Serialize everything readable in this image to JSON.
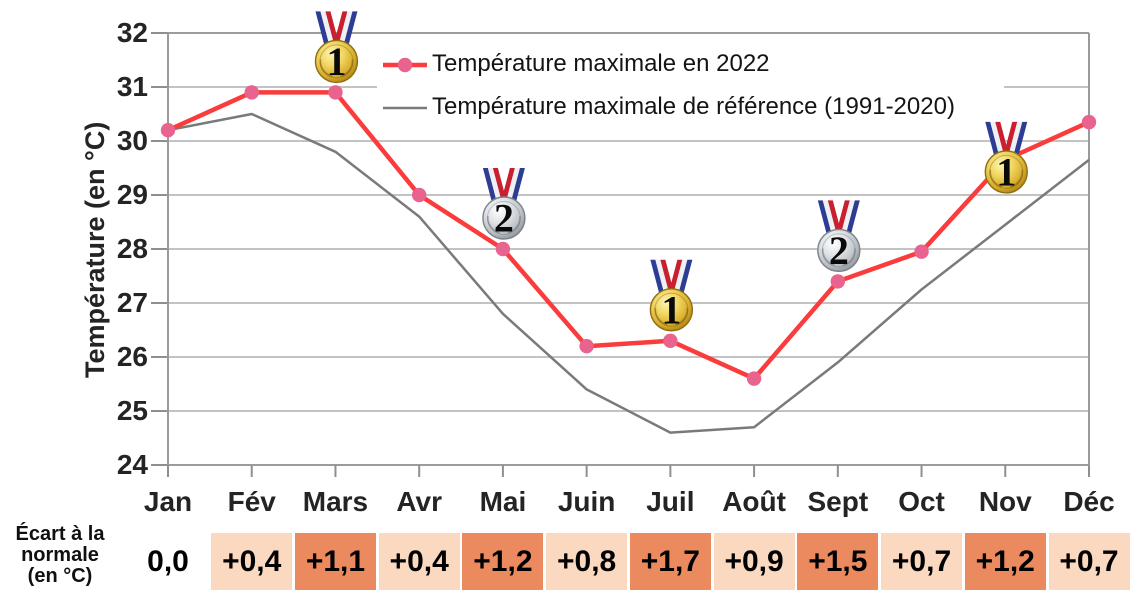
{
  "chart_data": {
    "type": "line",
    "x_categories": [
      "Jan",
      "Fév",
      "Mars",
      "Avr",
      "Mai",
      "Juin",
      "Juil",
      "Août",
      "Sept",
      "Oct",
      "Nov",
      "Déc"
    ],
    "series": [
      {
        "name": "Température maximale en 2022",
        "color": "#fb3c3c",
        "marker": "circle",
        "marker_color": "#e8638e",
        "values": [
          30.2,
          30.9,
          30.9,
          29.0,
          28.0,
          26.2,
          26.3,
          25.6,
          27.4,
          27.95,
          29.65,
          30.35
        ]
      },
      {
        "name": "Température maximale de référence (1991-2020)",
        "color": "#7a7a7a",
        "marker": "none",
        "values": [
          30.2,
          30.5,
          29.8,
          28.6,
          26.8,
          25.4,
          24.6,
          24.7,
          25.9,
          27.25,
          28.45,
          29.65
        ]
      }
    ],
    "ylabel": "Température (en °C)",
    "ylim": [
      24,
      32
    ],
    "ytick_step": 1,
    "grid": "horizontal",
    "legend_position": "top-inside",
    "medals": [
      {
        "month": "Mars",
        "rank": "1",
        "type": "gold",
        "placement": "above"
      },
      {
        "month": "Mai",
        "rank": "2",
        "type": "silver",
        "placement": "above"
      },
      {
        "month": "Juil",
        "rank": "1",
        "type": "gold",
        "placement": "above"
      },
      {
        "month": "Sept",
        "rank": "2",
        "type": "silver",
        "placement": "above"
      },
      {
        "month": "Nov",
        "rank": "1",
        "type": "gold",
        "placement": "on"
      }
    ]
  },
  "deviation_row": {
    "label_lines": [
      "Écart à la",
      "normale",
      "(en °C)"
    ],
    "values": [
      "0,0",
      "+0,4",
      "+1,1",
      "+0,4",
      "+1,2",
      "+0,8",
      "+1,7",
      "+0,9",
      "+1,5",
      "+0,7",
      "+1,2",
      "+0,7"
    ],
    "emphasis": [
      "none",
      "light",
      "strong",
      "light",
      "strong",
      "light",
      "strong",
      "light",
      "strong",
      "light",
      "strong",
      "light"
    ],
    "colors": {
      "light": "#fbd9c0",
      "strong": "#eb8a5e"
    }
  }
}
